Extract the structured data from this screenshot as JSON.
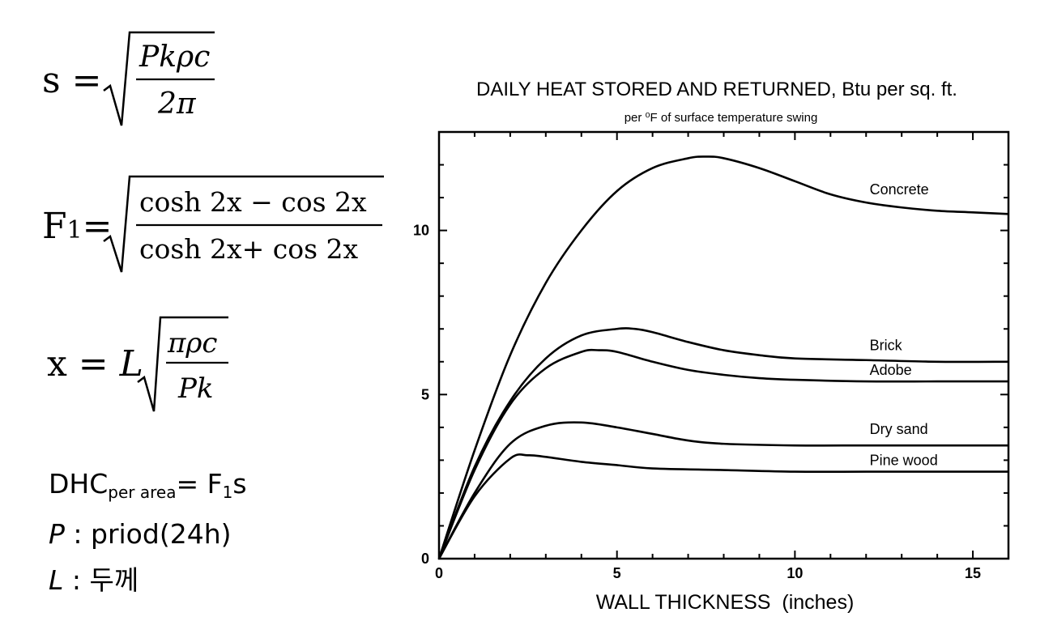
{
  "formulas": {
    "s": {
      "lhs": "s =",
      "num": "Pkρc",
      "den": "2π"
    },
    "f1": {
      "lhs_main": "F",
      "lhs_sub": "1",
      "lhs_eq": "=",
      "num": "cosh 2x − cos 2x",
      "den": "cosh 2x+ cos 2x"
    },
    "x": {
      "lhs": "x = ",
      "lhs_var": "L",
      "num": "πρc",
      "den": "Pk"
    }
  },
  "legend": {
    "dhc_main": "DHC",
    "dhc_sub": "per area",
    "dhc_eq": "= ",
    "dhc_rhs_main": "F",
    "dhc_rhs_sub": "1",
    "dhc_rhs_tail": "s",
    "p_var": "P",
    "p_text": " : priod(24h)",
    "l_var": "L",
    "l_text": " : 두께"
  },
  "chart_data": {
    "type": "line",
    "title": "DAILY HEAT STORED AND RETURNED, Btu per sq. ft.",
    "subtitle": "per ⁰F of surface temperature swing",
    "xlabel": "WALL THICKNESS  (inches)",
    "ylabel": "",
    "xlim": [
      0,
      16
    ],
    "ylim": [
      0,
      13
    ],
    "xticks": [
      0,
      5,
      10,
      15
    ],
    "xtick_labels": [
      "0",
      "5",
      "10",
      "15"
    ],
    "yticks": [
      0,
      5,
      10
    ],
    "ytick_labels": [
      "0",
      "5",
      "10"
    ],
    "grid": false,
    "series": [
      {
        "name": "Concrete",
        "x": [
          0,
          1,
          2,
          3,
          4,
          5,
          6,
          7,
          7.5,
          8,
          9,
          10,
          11,
          12,
          13,
          14,
          15,
          16
        ],
        "y": [
          0,
          3.3,
          6.2,
          8.4,
          10.0,
          11.2,
          11.9,
          12.2,
          12.25,
          12.2,
          11.9,
          11.5,
          11.1,
          10.85,
          10.7,
          10.6,
          10.55,
          10.5
        ]
      },
      {
        "name": "Brick",
        "x": [
          0,
          1,
          2,
          3,
          4,
          5,
          5.5,
          6,
          7,
          8,
          9,
          10,
          12,
          14,
          16
        ],
        "y": [
          0,
          2.8,
          4.8,
          6.1,
          6.8,
          7.0,
          7.0,
          6.9,
          6.6,
          6.35,
          6.2,
          6.1,
          6.05,
          6.0,
          6.0
        ]
      },
      {
        "name": "Adobe",
        "x": [
          0,
          1,
          2,
          3,
          4,
          4.5,
          5,
          6,
          7,
          8,
          9,
          10,
          12,
          14,
          16
        ],
        "y": [
          0,
          2.7,
          4.7,
          5.8,
          6.3,
          6.35,
          6.3,
          6.0,
          5.75,
          5.6,
          5.5,
          5.45,
          5.4,
          5.4,
          5.4
        ]
      },
      {
        "name": "Dry sand",
        "x": [
          0,
          1,
          2,
          3,
          4,
          5,
          6,
          7,
          8,
          10,
          12,
          14,
          16
        ],
        "y": [
          0,
          2.0,
          3.5,
          4.05,
          4.15,
          4.0,
          3.8,
          3.6,
          3.5,
          3.45,
          3.45,
          3.45,
          3.45
        ]
      },
      {
        "name": "Pine wood",
        "x": [
          0,
          1,
          2,
          2.5,
          3,
          4,
          5,
          6,
          8,
          10,
          12,
          14,
          16
        ],
        "y": [
          0,
          1.9,
          3.05,
          3.15,
          3.1,
          2.95,
          2.85,
          2.75,
          2.7,
          2.65,
          2.65,
          2.65,
          2.65
        ]
      }
    ],
    "annotations": [
      {
        "text": "Concrete",
        "x": 12.1,
        "y": 11.1
      },
      {
        "text": "Brick",
        "x": 12.1,
        "y": 6.35
      },
      {
        "text": "Adobe",
        "x": 12.1,
        "y": 5.6
      },
      {
        "text": "Dry sand",
        "x": 12.1,
        "y": 3.8
      },
      {
        "text": "Pine wood",
        "x": 12.1,
        "y": 2.85
      }
    ]
  }
}
